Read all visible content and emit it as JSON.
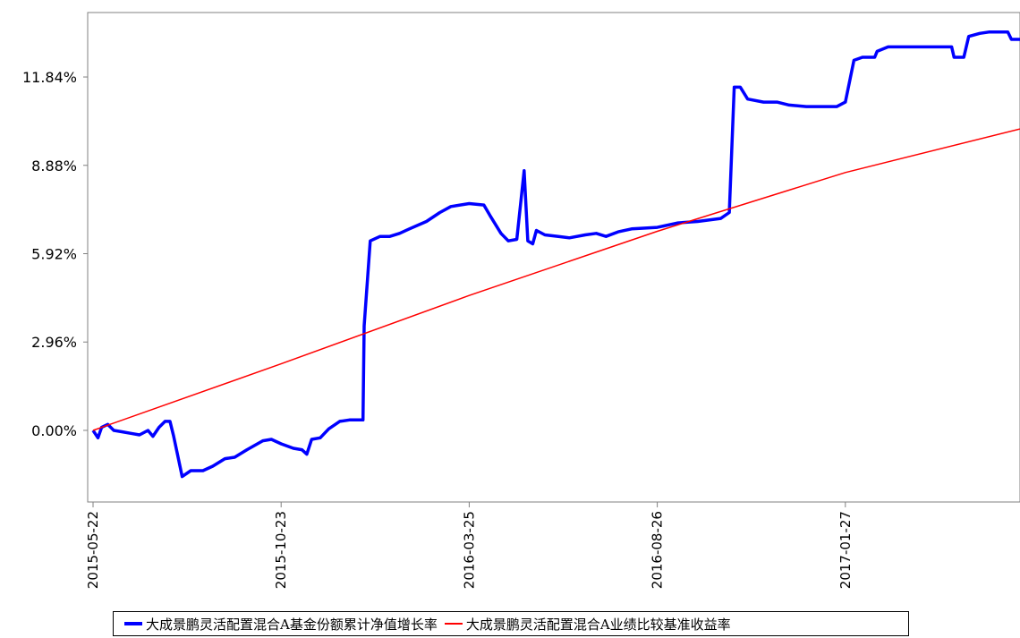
{
  "chart_data": {
    "type": "line",
    "title": "",
    "xlabel": "",
    "ylabel": "",
    "x_ticks": [
      "2015-05-22",
      "2015-10-23",
      "2016-03-25",
      "2016-08-26",
      "2017-01-27"
    ],
    "y_ticks": [
      "0.00%",
      "2.96%",
      "5.92%",
      "8.88%",
      "11.84%"
    ],
    "y_tick_values": [
      0,
      2.96,
      5.92,
      8.88,
      11.84
    ],
    "ylim": [
      -2.4,
      14.0
    ],
    "xlim": [
      "2015-05-22",
      "2017-06-19"
    ],
    "grid": false,
    "legend_position": "bottom",
    "series": [
      {
        "name": "大成景鹏灵活配置混合A基金份额累计净值增长率",
        "color": "#0000ff",
        "points": [
          [
            "2015-05-22",
            0.0
          ],
          [
            "2015-05-26",
            -0.25
          ],
          [
            "2015-05-29",
            0.1
          ],
          [
            "2015-06-03",
            0.2
          ],
          [
            "2015-06-08",
            0.0
          ],
          [
            "2015-06-15",
            -0.05
          ],
          [
            "2015-06-22",
            -0.1
          ],
          [
            "2015-06-29",
            -0.15
          ],
          [
            "2015-07-06",
            0.0
          ],
          [
            "2015-07-10",
            -0.2
          ],
          [
            "2015-07-15",
            0.1
          ],
          [
            "2015-07-20",
            0.3
          ],
          [
            "2015-07-24",
            0.3
          ],
          [
            "2015-07-27",
            -0.2
          ],
          [
            "2015-08-03",
            -1.55
          ],
          [
            "2015-08-10",
            -1.35
          ],
          [
            "2015-08-20",
            -1.35
          ],
          [
            "2015-08-28",
            -1.2
          ],
          [
            "2015-09-07",
            -0.95
          ],
          [
            "2015-09-15",
            -0.9
          ],
          [
            "2015-09-25",
            -0.65
          ],
          [
            "2015-10-08",
            -0.35
          ],
          [
            "2015-10-15",
            -0.3
          ],
          [
            "2015-10-23",
            -0.45
          ],
          [
            "2015-11-02",
            -0.6
          ],
          [
            "2015-11-09",
            -0.65
          ],
          [
            "2015-11-13",
            -0.8
          ],
          [
            "2015-11-17",
            -0.3
          ],
          [
            "2015-11-24",
            -0.25
          ],
          [
            "2015-12-01",
            0.05
          ],
          [
            "2015-12-10",
            0.3
          ],
          [
            "2015-12-18",
            0.35
          ],
          [
            "2015-12-29",
            0.35
          ],
          [
            "2015-12-30",
            3.5
          ],
          [
            "2016-01-04",
            6.35
          ],
          [
            "2016-01-12",
            6.5
          ],
          [
            "2016-01-20",
            6.5
          ],
          [
            "2016-01-28",
            6.6
          ],
          [
            "2016-02-05",
            6.75
          ],
          [
            "2016-02-19",
            7.0
          ],
          [
            "2016-03-01",
            7.3
          ],
          [
            "2016-03-10",
            7.5
          ],
          [
            "2016-03-25",
            7.6
          ],
          [
            "2016-04-06",
            7.55
          ],
          [
            "2016-04-11",
            7.2
          ],
          [
            "2016-04-20",
            6.6
          ],
          [
            "2016-04-26",
            6.35
          ],
          [
            "2016-05-03",
            6.4
          ],
          [
            "2016-05-09",
            8.7
          ],
          [
            "2016-05-12",
            6.35
          ],
          [
            "2016-05-16",
            6.25
          ],
          [
            "2016-05-19",
            6.7
          ],
          [
            "2016-05-26",
            6.55
          ],
          [
            "2016-06-06",
            6.5
          ],
          [
            "2016-06-15",
            6.45
          ],
          [
            "2016-06-28",
            6.55
          ],
          [
            "2016-07-07",
            6.6
          ],
          [
            "2016-07-15",
            6.5
          ],
          [
            "2016-07-25",
            6.65
          ],
          [
            "2016-08-05",
            6.75
          ],
          [
            "2016-08-26",
            6.8
          ],
          [
            "2016-09-12",
            6.95
          ],
          [
            "2016-09-28",
            7.0
          ],
          [
            "2016-10-17",
            7.1
          ],
          [
            "2016-10-24",
            7.3
          ],
          [
            "2016-10-28",
            11.5
          ],
          [
            "2016-11-02",
            11.5
          ],
          [
            "2016-11-08",
            11.1
          ],
          [
            "2016-11-21",
            11.0
          ],
          [
            "2016-12-02",
            11.0
          ],
          [
            "2016-12-12",
            10.9
          ],
          [
            "2016-12-26",
            10.85
          ],
          [
            "2017-01-09",
            10.85
          ],
          [
            "2017-01-20",
            10.85
          ],
          [
            "2017-01-27",
            11.0
          ],
          [
            "2017-02-03",
            12.4
          ],
          [
            "2017-02-10",
            12.5
          ],
          [
            "2017-02-20",
            12.5
          ],
          [
            "2017-02-22",
            12.7
          ],
          [
            "2017-03-03",
            12.85
          ],
          [
            "2017-03-17",
            12.85
          ],
          [
            "2017-04-07",
            12.85
          ],
          [
            "2017-04-24",
            12.85
          ],
          [
            "2017-04-26",
            12.5
          ],
          [
            "2017-05-04",
            12.5
          ],
          [
            "2017-05-08",
            13.2
          ],
          [
            "2017-05-17",
            13.3
          ],
          [
            "2017-05-25",
            13.35
          ],
          [
            "2017-06-09",
            13.35
          ],
          [
            "2017-06-12",
            13.1
          ],
          [
            "2017-06-19",
            13.1
          ]
        ]
      },
      {
        "name": "大成景鹏灵活配置混合A业绩比较基准收益率",
        "color": "#ff0000",
        "points": [
          [
            "2015-05-22",
            0.0
          ],
          [
            "2015-10-23",
            2.23
          ],
          [
            "2016-03-25",
            4.52
          ],
          [
            "2016-08-26",
            6.67
          ],
          [
            "2017-01-27",
            8.64
          ],
          [
            "2017-06-19",
            10.1
          ]
        ]
      }
    ]
  }
}
